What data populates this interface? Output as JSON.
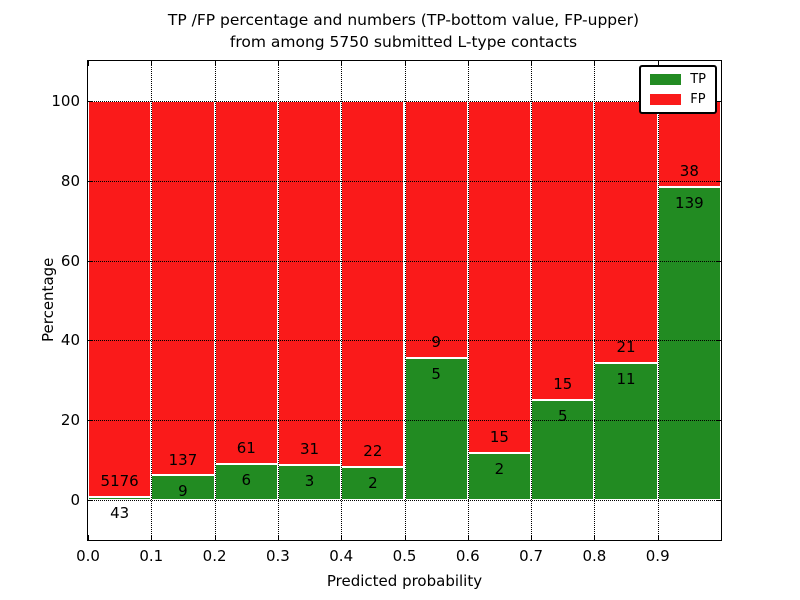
{
  "figure": {
    "title_line1": "TP /FP percentage and numbers (TP-bottom value, FP-upper)",
    "title_line2": "from among 5750 submitted L-type contacts"
  },
  "chart_data": {
    "type": "bar",
    "variant": "stacked-percentage",
    "title": "TP /FP percentage and numbers (TP-bottom value, FP-upper)\nfrom among 5750 submitted L-type contacts",
    "xlabel": "Predicted probability",
    "ylabel": "Percentage",
    "bin_starts": [
      0.0,
      0.1,
      0.2,
      0.3,
      0.4,
      0.5,
      0.6,
      0.7,
      0.8,
      0.9
    ],
    "bin_width": 0.1,
    "x_tick_labels": [
      "0.0",
      "0.1",
      "0.2",
      "0.3",
      "0.4",
      "0.5",
      "0.6",
      "0.7",
      "0.8",
      "0.9"
    ],
    "y_ticks": [
      0,
      20,
      40,
      60,
      80,
      100
    ],
    "y_tick_labels": [
      "0",
      "20",
      "40",
      "60",
      "80",
      "100"
    ],
    "xlim": [
      0,
      1
    ],
    "ylim": [
      -10,
      110
    ],
    "grid": "dotted",
    "series": [
      {
        "name": "TP",
        "color": "#228b22",
        "values": [
          43,
          9,
          6,
          3,
          2,
          5,
          2,
          5,
          11,
          139
        ]
      },
      {
        "name": "FP",
        "color": "#fa1a1a",
        "values": [
          5176,
          137,
          61,
          31,
          22,
          9,
          15,
          15,
          21,
          38
        ]
      }
    ],
    "legend": {
      "position": "upper-right",
      "entries": [
        {
          "label": "TP",
          "color": "#228b22"
        },
        {
          "label": "FP",
          "color": "#fa1a1a"
        }
      ]
    }
  }
}
